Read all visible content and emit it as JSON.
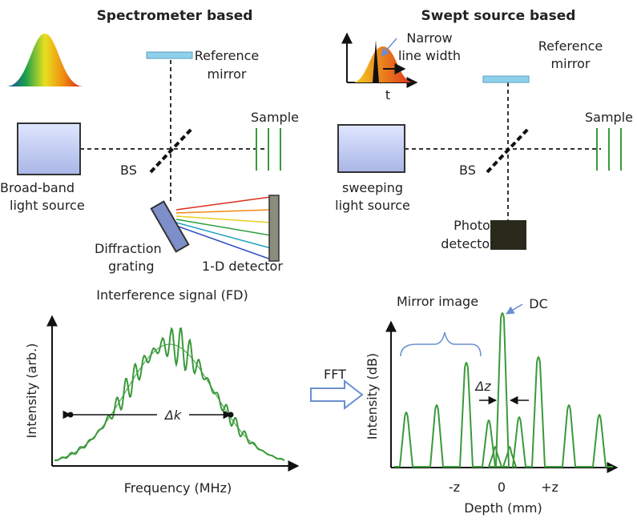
{
  "left_panel": {
    "title": "Spectrometer based",
    "reference_mirror": [
      "Reference",
      "mirror"
    ],
    "sample": "Sample",
    "bs": "BS",
    "source": [
      "Broad-band",
      "light source"
    ],
    "grating": [
      "Diffraction",
      "grating"
    ],
    "detector": "1-D detector"
  },
  "right_panel": {
    "title": "Swept source based",
    "linewidth": [
      "Narrow",
      "line width"
    ],
    "time_axis": "t",
    "reference_mirror": [
      "Reference",
      "mirror"
    ],
    "sample": "Sample",
    "bs": "BS",
    "source": [
      "sweeping",
      "light source"
    ],
    "detector": [
      "Photo",
      "detector"
    ]
  },
  "interference_plot": {
    "title": "Interference signal (FD)",
    "y_label": "Intensity (arb.)",
    "x_label": "Frequency (MHz)",
    "delta": "Δk"
  },
  "transform_label": "FFT",
  "depth_plot": {
    "mirror_label": "Mirror image",
    "dc_label": "DC",
    "y_label": "Intensity (dB)",
    "delta": "Δz",
    "x_ticks": [
      "-z",
      "0",
      "+z"
    ],
    "x_label": "Depth (mm)"
  }
}
